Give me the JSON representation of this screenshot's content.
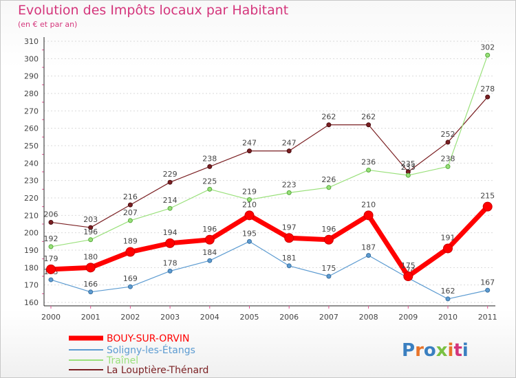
{
  "chart_data": {
    "type": "line",
    "title": "Evolution des Impôts locaux par Habitant",
    "subtitle": "(en € et par an)",
    "xlabel": "",
    "ylabel": "",
    "ylim": [
      160,
      310
    ],
    "yticks": [
      "160",
      "170",
      "180",
      "190",
      "200",
      "210",
      "220",
      "230",
      "240",
      "250",
      "260",
      "270",
      "280",
      "290",
      "300",
      "310"
    ],
    "categories": [
      "2000",
      "2001",
      "2002",
      "2003",
      "2004",
      "2005",
      "2006",
      "2007",
      "2008",
      "2009",
      "2010",
      "2011"
    ],
    "series": [
      {
        "name": "BOUY-SUR-ORVIN",
        "color": "#ff0000",
        "values": [
          179,
          180,
          189,
          194,
          196,
          210,
          197,
          196,
          210,
          175,
          191,
          215
        ],
        "labels": [
          "179",
          "180",
          "189",
          "194",
          "196",
          "210",
          "197",
          "196",
          "210",
          "175",
          "191",
          "215"
        ]
      },
      {
        "name": "Soligny-les-Étangs",
        "color": "#5c9bd1",
        "values": [
          173,
          166,
          169,
          178,
          184,
          195,
          181,
          175,
          187,
          174,
          162,
          167
        ],
        "labels": [
          "173",
          "166",
          "169",
          "178",
          "184",
          "195",
          "181",
          "175",
          "187",
          "174",
          "162",
          "167"
        ]
      },
      {
        "name": "Traînel",
        "color": "#99e07a",
        "values": [
          192,
          196,
          207,
          214,
          225,
          219,
          223,
          226,
          236,
          233,
          238,
          302
        ],
        "labels": [
          "192",
          "196",
          "207",
          "214",
          "225",
          "219",
          "223",
          "226",
          "236",
          "233",
          "238",
          "302"
        ]
      },
      {
        "name": "La Louptière-Thénard",
        "color": "#7a1f22",
        "values": [
          206,
          203,
          216,
          229,
          238,
          247,
          247,
          262,
          262,
          235,
          252,
          278
        ],
        "labels": [
          "206",
          "203",
          "216",
          "229",
          "238",
          "247",
          "247",
          "262",
          "262",
          "235",
          "252",
          "278"
        ]
      }
    ],
    "legend_position": "bottom-left"
  },
  "logo": {
    "text": "Proxiti"
  }
}
